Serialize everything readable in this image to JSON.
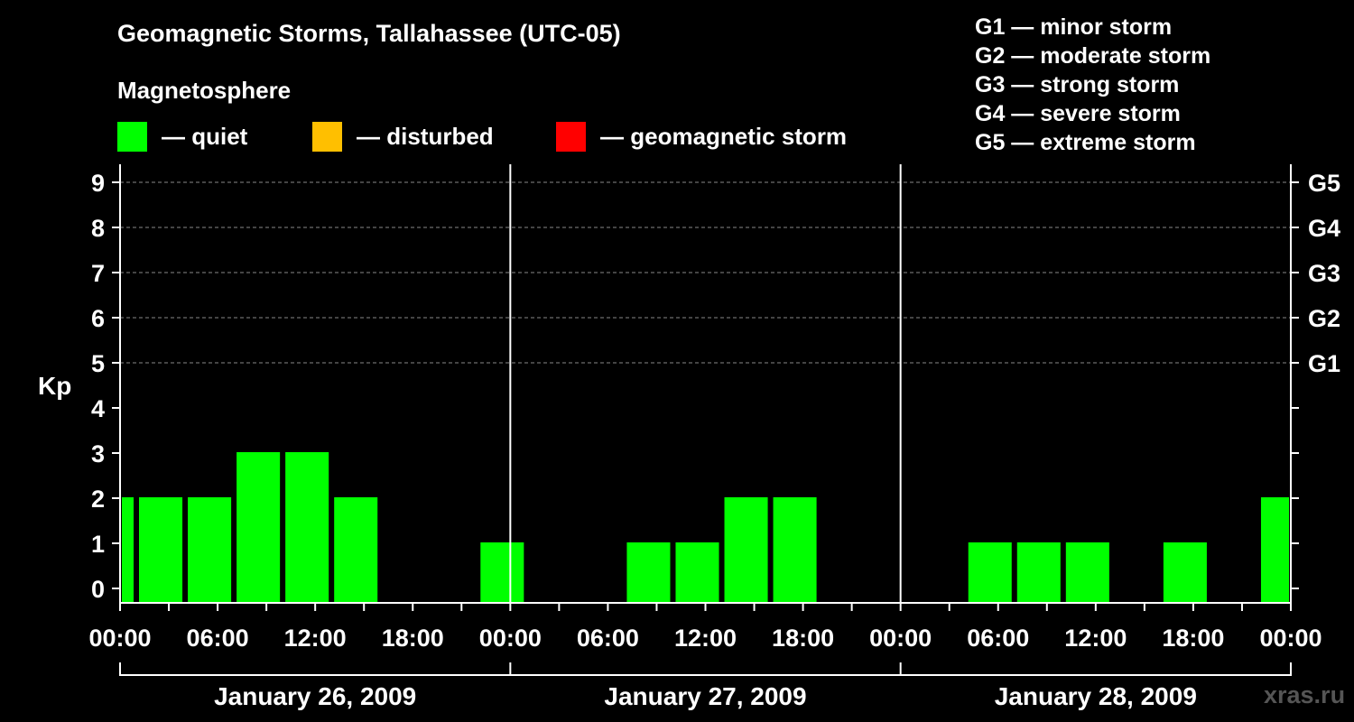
{
  "title": "Geomagnetic Storms, Tallahassee (UTC-05)",
  "magnetosphere_title": "Magnetosphere",
  "legend": [
    {
      "label": "— quiet",
      "color": "#00ff00"
    },
    {
      "label": "— disturbed",
      "color": "#ffbf00"
    },
    {
      "label": "— geomagnetic storm",
      "color": "#ff0000"
    }
  ],
  "g_levels": [
    "G1 — minor storm",
    "G2 — moderate storm",
    "G3 — strong storm",
    "G4 — severe storm",
    "G5 — extreme storm"
  ],
  "watermark": "xras.ru",
  "chart_data": {
    "type": "bar",
    "title": "Geomagnetic Storms, Tallahassee (UTC-05)",
    "ylabel": "Kp",
    "ylim": [
      0,
      9
    ],
    "y_ticks": [
      "0",
      "1",
      "2",
      "3",
      "4",
      "5",
      "6",
      "7",
      "8",
      "9"
    ],
    "right_ticks": [
      {
        "kp": 5,
        "label": "G1"
      },
      {
        "kp": 6,
        "label": "G2"
      },
      {
        "kp": 7,
        "label": "G3"
      },
      {
        "kp": 8,
        "label": "G4"
      },
      {
        "kp": 9,
        "label": "G5"
      }
    ],
    "x_tick_labels": [
      "00:00",
      "06:00",
      "12:00",
      "18:00",
      "00:00",
      "06:00",
      "12:00",
      "18:00",
      "00:00",
      "06:00",
      "12:00",
      "18:00",
      "00:00"
    ],
    "day_labels": [
      "January 26, 2009",
      "January 27, 2009",
      "January 28, 2009"
    ],
    "x_range_hours": [
      0,
      72
    ],
    "grid": "horizontal dashed at Kp 5-9",
    "bar_color": "#00ff00",
    "bars": [
      {
        "start": 0,
        "end": 1,
        "kp": 2
      },
      {
        "start": 1,
        "end": 4,
        "kp": 2
      },
      {
        "start": 4,
        "end": 7,
        "kp": 2
      },
      {
        "start": 7,
        "end": 10,
        "kp": 3
      },
      {
        "start": 10,
        "end": 13,
        "kp": 3
      },
      {
        "start": 13,
        "end": 16,
        "kp": 2
      },
      {
        "start": 16,
        "end": 19,
        "kp": 0
      },
      {
        "start": 19,
        "end": 22,
        "kp": 0
      },
      {
        "start": 22,
        "end": 25,
        "kp": 1
      },
      {
        "start": 25,
        "end": 28,
        "kp": 0
      },
      {
        "start": 28,
        "end": 31,
        "kp": 0
      },
      {
        "start": 31,
        "end": 34,
        "kp": 1
      },
      {
        "start": 34,
        "end": 37,
        "kp": 1
      },
      {
        "start": 37,
        "end": 40,
        "kp": 2
      },
      {
        "start": 40,
        "end": 43,
        "kp": 2
      },
      {
        "start": 43,
        "end": 46,
        "kp": 0
      },
      {
        "start": 46,
        "end": 49,
        "kp": 0
      },
      {
        "start": 49,
        "end": 52,
        "kp": 0
      },
      {
        "start": 52,
        "end": 55,
        "kp": 1
      },
      {
        "start": 55,
        "end": 58,
        "kp": 1
      },
      {
        "start": 58,
        "end": 61,
        "kp": 1
      },
      {
        "start": 61,
        "end": 64,
        "kp": 0
      },
      {
        "start": 64,
        "end": 67,
        "kp": 1
      },
      {
        "start": 67,
        "end": 70,
        "kp": 0
      },
      {
        "start": 70,
        "end": 72,
        "kp": 2
      }
    ]
  }
}
